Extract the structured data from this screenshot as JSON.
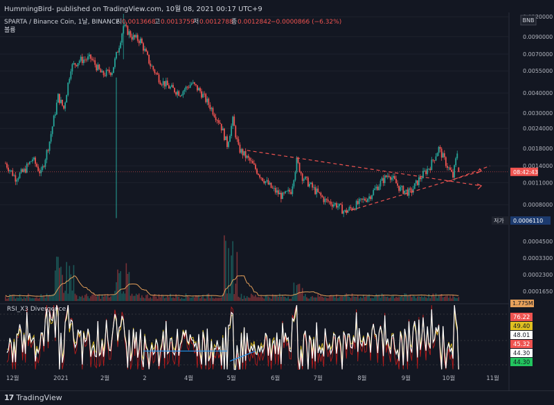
{
  "header": {
    "published_by": "HummingBird- published on TradingView.com, 10월 08, 2021 00:17 UTC+9"
  },
  "footer": {
    "brand": "TradingView"
  },
  "colors": {
    "bg": "#131722",
    "up": "#26a69a",
    "down": "#ef5350",
    "grid": "#1e222d",
    "rsi": "#ffffff",
    "rsi_fast": "#e0c020",
    "rsi_slow": "#b71c1c",
    "trend": "#ef5350",
    "divergence": "#2196f3",
    "volume_ma": "#e6a05a"
  },
  "chart_data": {
    "type": "candlestick",
    "symbol_line": "SPARTA / Binance Coin, 1날, BINANCE",
    "ohlc": {
      "o_label": "시",
      "o": "0.0013668",
      "h_label": "고",
      "h": "0.0013759",
      "l_label": "저",
      "l": "0.0012788",
      "c_label": "종",
      "c": "0.0012842",
      "change": "−0.0000866 (−6.32%)"
    },
    "volume_label": "볼륨",
    "currency_badge": "BNB",
    "last_price_time": "08:42:43",
    "low_label": "저가",
    "low_value": "0.0006110",
    "price_axis_log": true,
    "price_ticks": [
      "0.0120000",
      "0.0090000",
      "0.0070000",
      "0.0055000",
      "0.0040000",
      "0.0030000",
      "0.0024000",
      "0.0018000",
      "0.0014000",
      "0.0011000",
      "0.0008000"
    ],
    "volume_ticks": [
      "0.0004500",
      "0.0003300",
      "0.0002300",
      "0.0001650"
    ],
    "volume_ma_badge": "1.775M",
    "rsi_title": "RSI_X3 Divergence",
    "rsi_badges": [
      "76.22",
      "49.40",
      "48.01",
      "45.32",
      "44.30",
      "44.30"
    ],
    "x_ticks": [
      "12월",
      "2021",
      "2월",
      "2",
      "4월",
      "5월",
      "6월",
      "7월",
      "8월",
      "9월",
      "10월",
      "11월"
    ],
    "price_path_keypoints": [
      {
        "date": "2020-11-23",
        "close": 0.00145
      },
      {
        "date": "2020-11-30",
        "close": 0.00118
      },
      {
        "date": "2020-12-06",
        "close": 0.0013
      },
      {
        "date": "2020-12-12",
        "close": 0.00155
      },
      {
        "date": "2020-12-18",
        "close": 0.00125
      },
      {
        "date": "2020-12-24",
        "close": 0.002
      },
      {
        "date": "2020-12-30",
        "close": 0.0038
      },
      {
        "date": "2021-01-03",
        "close": 0.0032
      },
      {
        "date": "2021-01-08",
        "close": 0.0058
      },
      {
        "date": "2021-01-14",
        "close": 0.0064
      },
      {
        "date": "2021-01-22",
        "close": 0.0066
      },
      {
        "date": "2021-01-30",
        "close": 0.0052
      },
      {
        "date": "2021-02-06",
        "close": 0.0055
      },
      {
        "date": "2021-02-11",
        "close": 0.008
      },
      {
        "date": "2021-02-14",
        "close": 0.0105
      },
      {
        "date": "2021-02-20",
        "close": 0.009
      },
      {
        "date": "2021-02-26",
        "close": 0.0085
      },
      {
        "date": "2021-03-05",
        "close": 0.006
      },
      {
        "date": "2021-03-12",
        "close": 0.0048
      },
      {
        "date": "2021-03-19",
        "close": 0.0043
      },
      {
        "date": "2021-03-26",
        "close": 0.004
      },
      {
        "date": "2021-04-03",
        "close": 0.0046
      },
      {
        "date": "2021-04-09",
        "close": 0.0041
      },
      {
        "date": "2021-04-16",
        "close": 0.0033
      },
      {
        "date": "2021-04-23",
        "close": 0.0026
      },
      {
        "date": "2021-04-28",
        "close": 0.0019
      },
      {
        "date": "2021-05-02",
        "close": 0.0027
      },
      {
        "date": "2021-05-06",
        "close": 0.0018
      },
      {
        "date": "2021-05-14",
        "close": 0.0015
      },
      {
        "date": "2021-05-22",
        "close": 0.0012
      },
      {
        "date": "2021-05-30",
        "close": 0.001
      },
      {
        "date": "2021-06-06",
        "close": 0.0009
      },
      {
        "date": "2021-06-12",
        "close": 0.00098
      },
      {
        "date": "2021-06-16",
        "close": 0.0015
      },
      {
        "date": "2021-06-20",
        "close": 0.0012
      },
      {
        "date": "2021-06-28",
        "close": 0.001
      },
      {
        "date": "2021-07-06",
        "close": 0.00085
      },
      {
        "date": "2021-07-14",
        "close": 0.0008
      },
      {
        "date": "2021-07-20",
        "close": 0.00072
      },
      {
        "date": "2021-07-28",
        "close": 0.0008
      },
      {
        "date": "2021-08-06",
        "close": 0.0009
      },
      {
        "date": "2021-08-14",
        "close": 0.0011
      },
      {
        "date": "2021-08-20",
        "close": 0.00125
      },
      {
        "date": "2021-08-28",
        "close": 0.001
      },
      {
        "date": "2021-09-04",
        "close": 0.00095
      },
      {
        "date": "2021-09-10",
        "close": 0.00115
      },
      {
        "date": "2021-09-18",
        "close": 0.0014
      },
      {
        "date": "2021-09-24",
        "close": 0.0018
      },
      {
        "date": "2021-09-30",
        "close": 0.0014
      },
      {
        "date": "2021-10-04",
        "close": 0.0012
      },
      {
        "date": "2021-10-07",
        "close": 0.0017
      },
      {
        "date": "2021-10-08",
        "close": 0.00128
      }
    ]
  }
}
